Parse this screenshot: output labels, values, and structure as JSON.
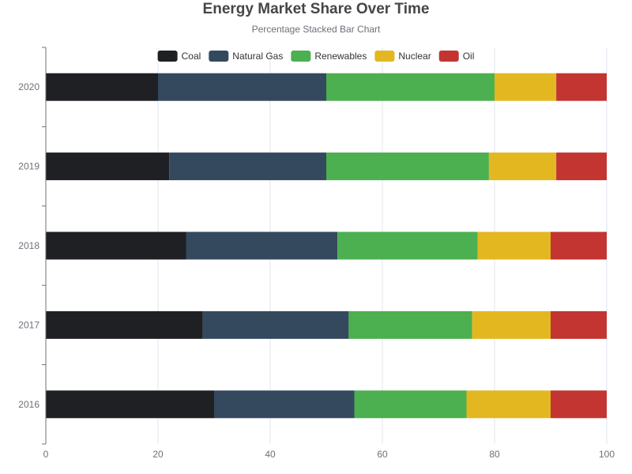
{
  "chart_data": {
    "type": "bar",
    "orientation": "horizontal",
    "stacked": true,
    "title": "Energy Market Share Over Time",
    "subtitle": "Percentage Stacked Bar Chart",
    "categories": [
      "2016",
      "2017",
      "2018",
      "2019",
      "2020"
    ],
    "series": [
      {
        "name": "Coal",
        "color": "#1f2024",
        "values": [
          30,
          28,
          25,
          22,
          20
        ]
      },
      {
        "name": "Natural Gas",
        "color": "#34495e",
        "values": [
          25,
          26,
          27,
          28,
          30
        ]
      },
      {
        "name": "Renewables",
        "color": "#4caf50",
        "values": [
          20,
          22,
          25,
          29,
          30
        ]
      },
      {
        "name": "Nuclear",
        "color": "#e3b720",
        "values": [
          15,
          14,
          13,
          12,
          11
        ]
      },
      {
        "name": "Oil",
        "color": "#c23531",
        "values": [
          10,
          10,
          10,
          9,
          9
        ]
      }
    ],
    "x_ticks": [
      "0",
      "20",
      "40",
      "60",
      "80",
      "100"
    ],
    "xlim": [
      0,
      100
    ],
    "xlabel": "",
    "ylabel": "",
    "grid": true,
    "legend_position": "top-center"
  }
}
